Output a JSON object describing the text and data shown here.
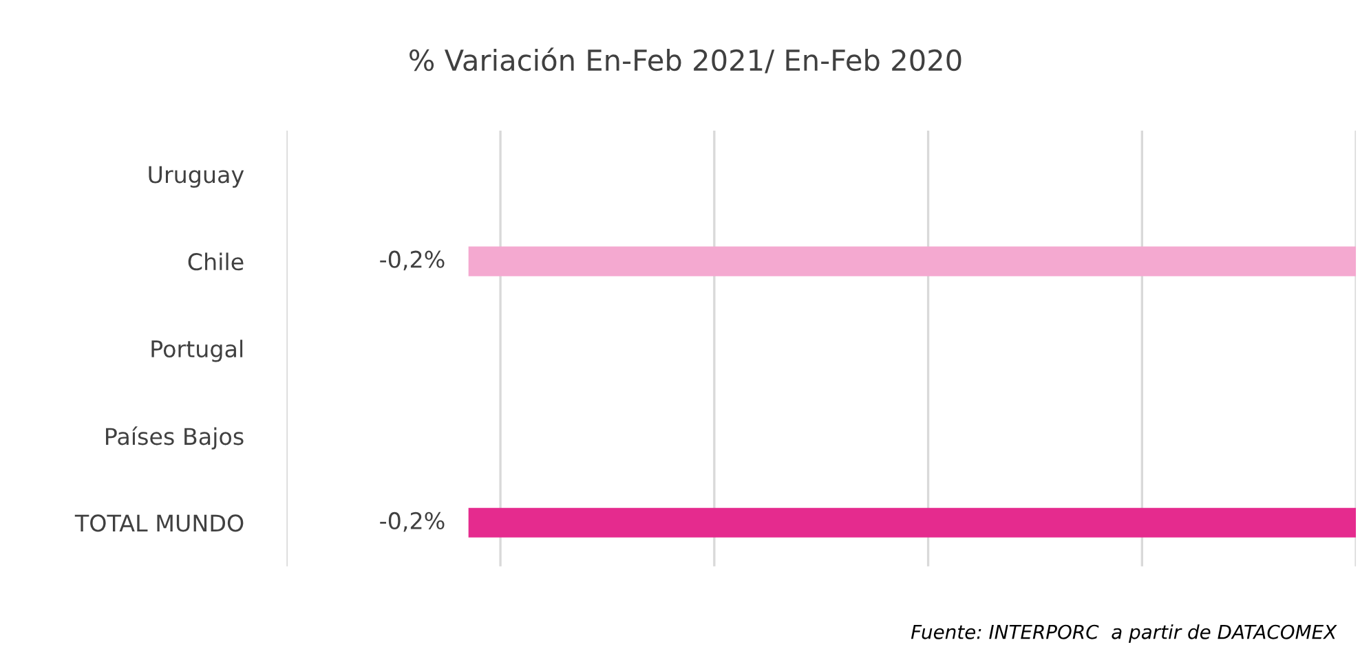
{
  "chart_data": {
    "type": "bar",
    "orientation": "horizontal",
    "title": "% Variación En-Feb 2021/ En-Feb 2020",
    "categories": [
      "Uruguay",
      "Chile",
      "Portugal",
      "Países Bajos",
      "TOTAL MUNDO"
    ],
    "values": [
      null,
      -0.2,
      null,
      null,
      -0.2
    ],
    "colors": [
      "#f4a9d0",
      "#f4a9d0",
      "#f4a9d0",
      "#f4a9d0",
      "#e52b8e"
    ],
    "value_labels": [
      null,
      "-0,2%",
      null,
      null,
      "-0,2%"
    ],
    "xlim": [
      -0.241,
      0
    ],
    "xticks": [
      {
        "value": -0.241,
        "label": null
      },
      {
        "value": -0.1928,
        "label": null
      },
      {
        "value": -0.1446,
        "label": null
      },
      {
        "value": -0.0964,
        "label": null
      },
      {
        "value": -0.0482,
        "label": null
      },
      {
        "value": 0,
        "label": null
      }
    ],
    "grid": "x",
    "tick_labels": "y",
    "annotations": [
      "Fuente: INTERPORC  a partir de DATACOMEX"
    ]
  }
}
